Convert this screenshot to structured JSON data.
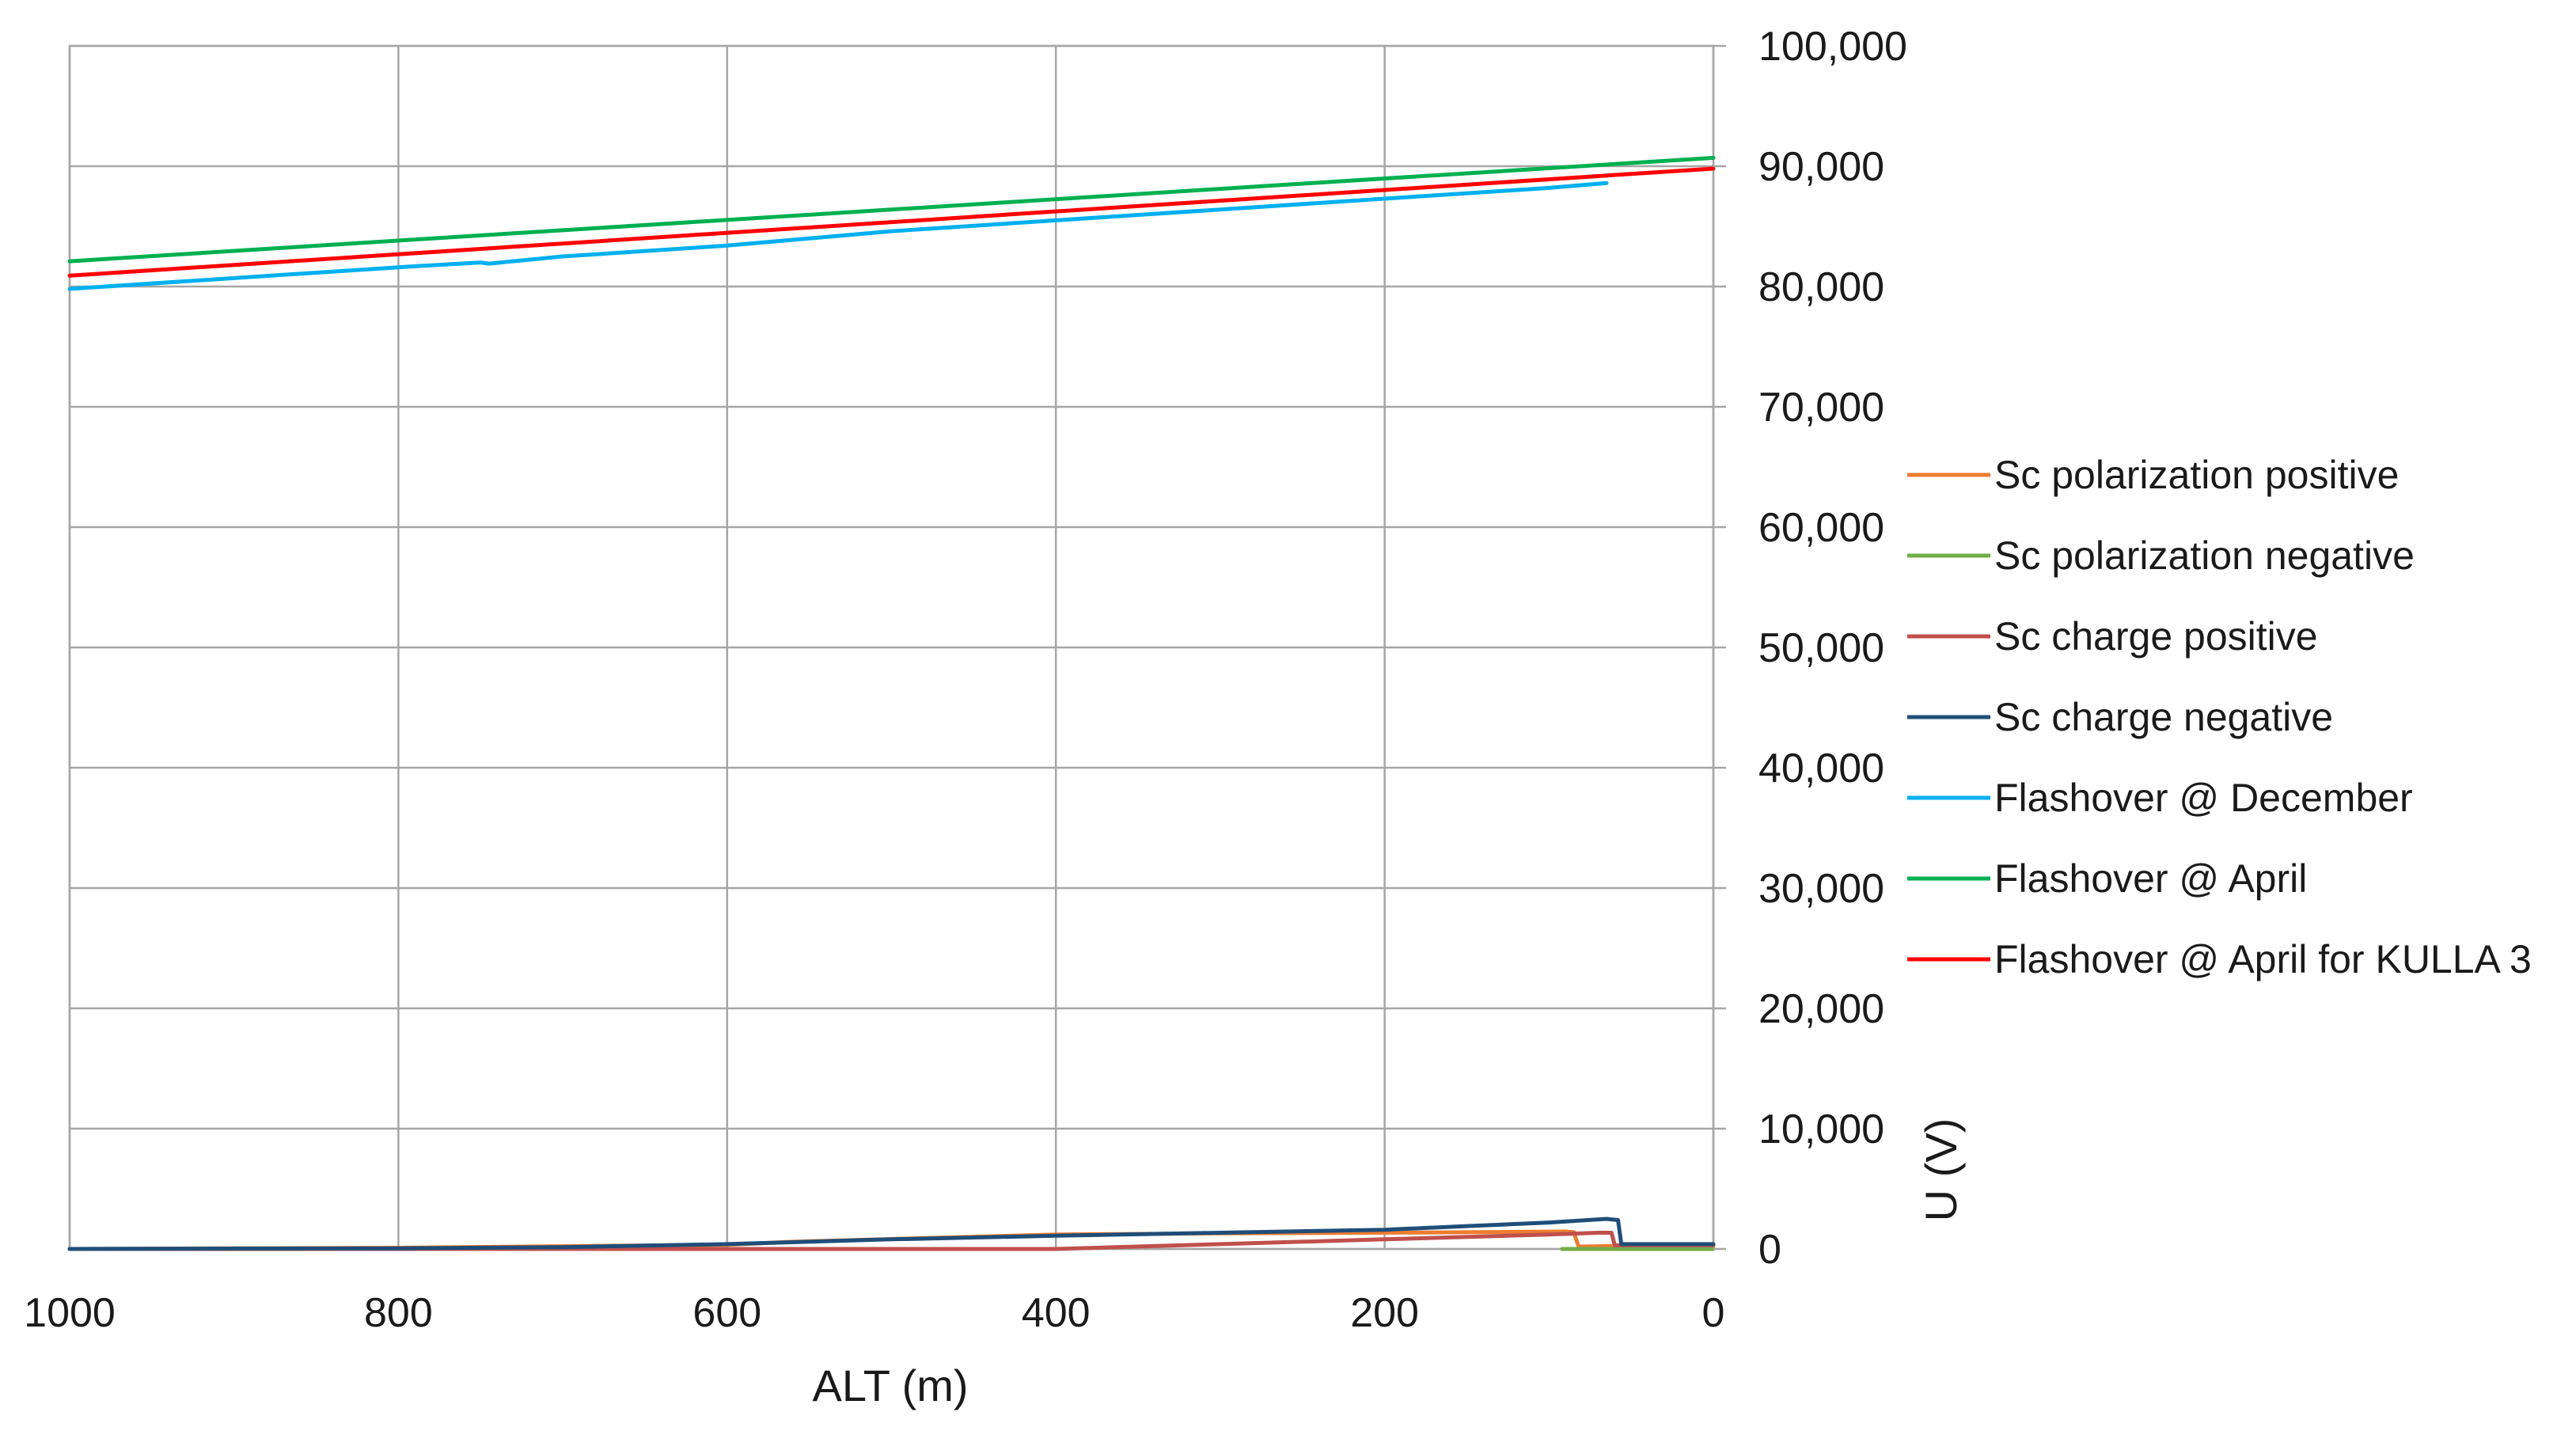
{
  "chart_data": {
    "type": "line",
    "xlabel": "ALT (m)",
    "ylabel": "U (V)",
    "xlim": [
      1000,
      0
    ],
    "ylim": [
      0,
      100000
    ],
    "x_reversed": true,
    "y_axis_side": "right",
    "grid": true,
    "legend_position": "right",
    "x_ticks": [
      1000,
      800,
      600,
      400,
      200,
      0
    ],
    "x_tick_labels": [
      "1000",
      "800",
      "600",
      "400",
      "200",
      "0"
    ],
    "y_ticks": [
      0,
      10000,
      20000,
      30000,
      40000,
      50000,
      60000,
      70000,
      80000,
      90000,
      100000
    ],
    "y_tick_labels": [
      "0",
      "10,000",
      "20,000",
      "30,000",
      "40,000",
      "50,000",
      "60,000",
      "70,000",
      "80,000",
      "90,000",
      "100,000"
    ],
    "series": [
      {
        "name": "Sc polarization positive",
        "color": "#ED7D31",
        "points": [
          [
            1000,
            0
          ],
          [
            800,
            100
          ],
          [
            600,
            350
          ],
          [
            560,
            600
          ],
          [
            400,
            1200
          ],
          [
            300,
            1300
          ],
          [
            200,
            1350
          ],
          [
            90,
            1450
          ],
          [
            85,
            1400
          ],
          [
            82,
            200
          ],
          [
            60,
            250
          ],
          [
            0,
            250
          ]
        ]
      },
      {
        "name": "Sc polarization negative",
        "color": "#70AD47",
        "points": [
          [
            92,
            0
          ],
          [
            60,
            0
          ],
          [
            0,
            0
          ]
        ]
      },
      {
        "name": "Sc charge positive",
        "color": "#C0504D",
        "points": [
          [
            1000,
            0
          ],
          [
            700,
            0
          ],
          [
            550,
            0
          ],
          [
            400,
            0
          ],
          [
            300,
            400
          ],
          [
            200,
            800
          ],
          [
            100,
            1200
          ],
          [
            70,
            1350
          ],
          [
            62,
            1350
          ],
          [
            60,
            300
          ],
          [
            0,
            300
          ]
        ]
      },
      {
        "name": "Sc charge negative",
        "color": "#1F4E79",
        "points": [
          [
            1000,
            0
          ],
          [
            800,
            50
          ],
          [
            700,
            150
          ],
          [
            600,
            400
          ],
          [
            500,
            800
          ],
          [
            400,
            1100
          ],
          [
            300,
            1350
          ],
          [
            200,
            1600
          ],
          [
            150,
            1900
          ],
          [
            100,
            2200
          ],
          [
            65,
            2500
          ],
          [
            58,
            2400
          ],
          [
            56,
            400
          ],
          [
            0,
            400
          ]
        ]
      },
      {
        "name": "Flashover @ December",
        "color": "#00B0F0",
        "points": [
          [
            1000,
            79800
          ],
          [
            800,
            81600
          ],
          [
            750,
            82000
          ],
          [
            745,
            81900
          ],
          [
            700,
            82500
          ],
          [
            600,
            83400
          ],
          [
            550,
            84000
          ],
          [
            500,
            84600
          ],
          [
            400,
            85500
          ],
          [
            300,
            86400
          ],
          [
            200,
            87300
          ],
          [
            100,
            88200
          ],
          [
            65,
            88600
          ]
        ]
      },
      {
        "name": "Flashover @ April",
        "color": "#00B050",
        "points": [
          [
            1000,
            82100
          ],
          [
            0,
            90700
          ]
        ]
      },
      {
        "name": "Flashover @ April for KULLA 3",
        "color": "#FF0000",
        "points": [
          [
            1000,
            80900
          ],
          [
            0,
            89800
          ]
        ]
      }
    ]
  }
}
